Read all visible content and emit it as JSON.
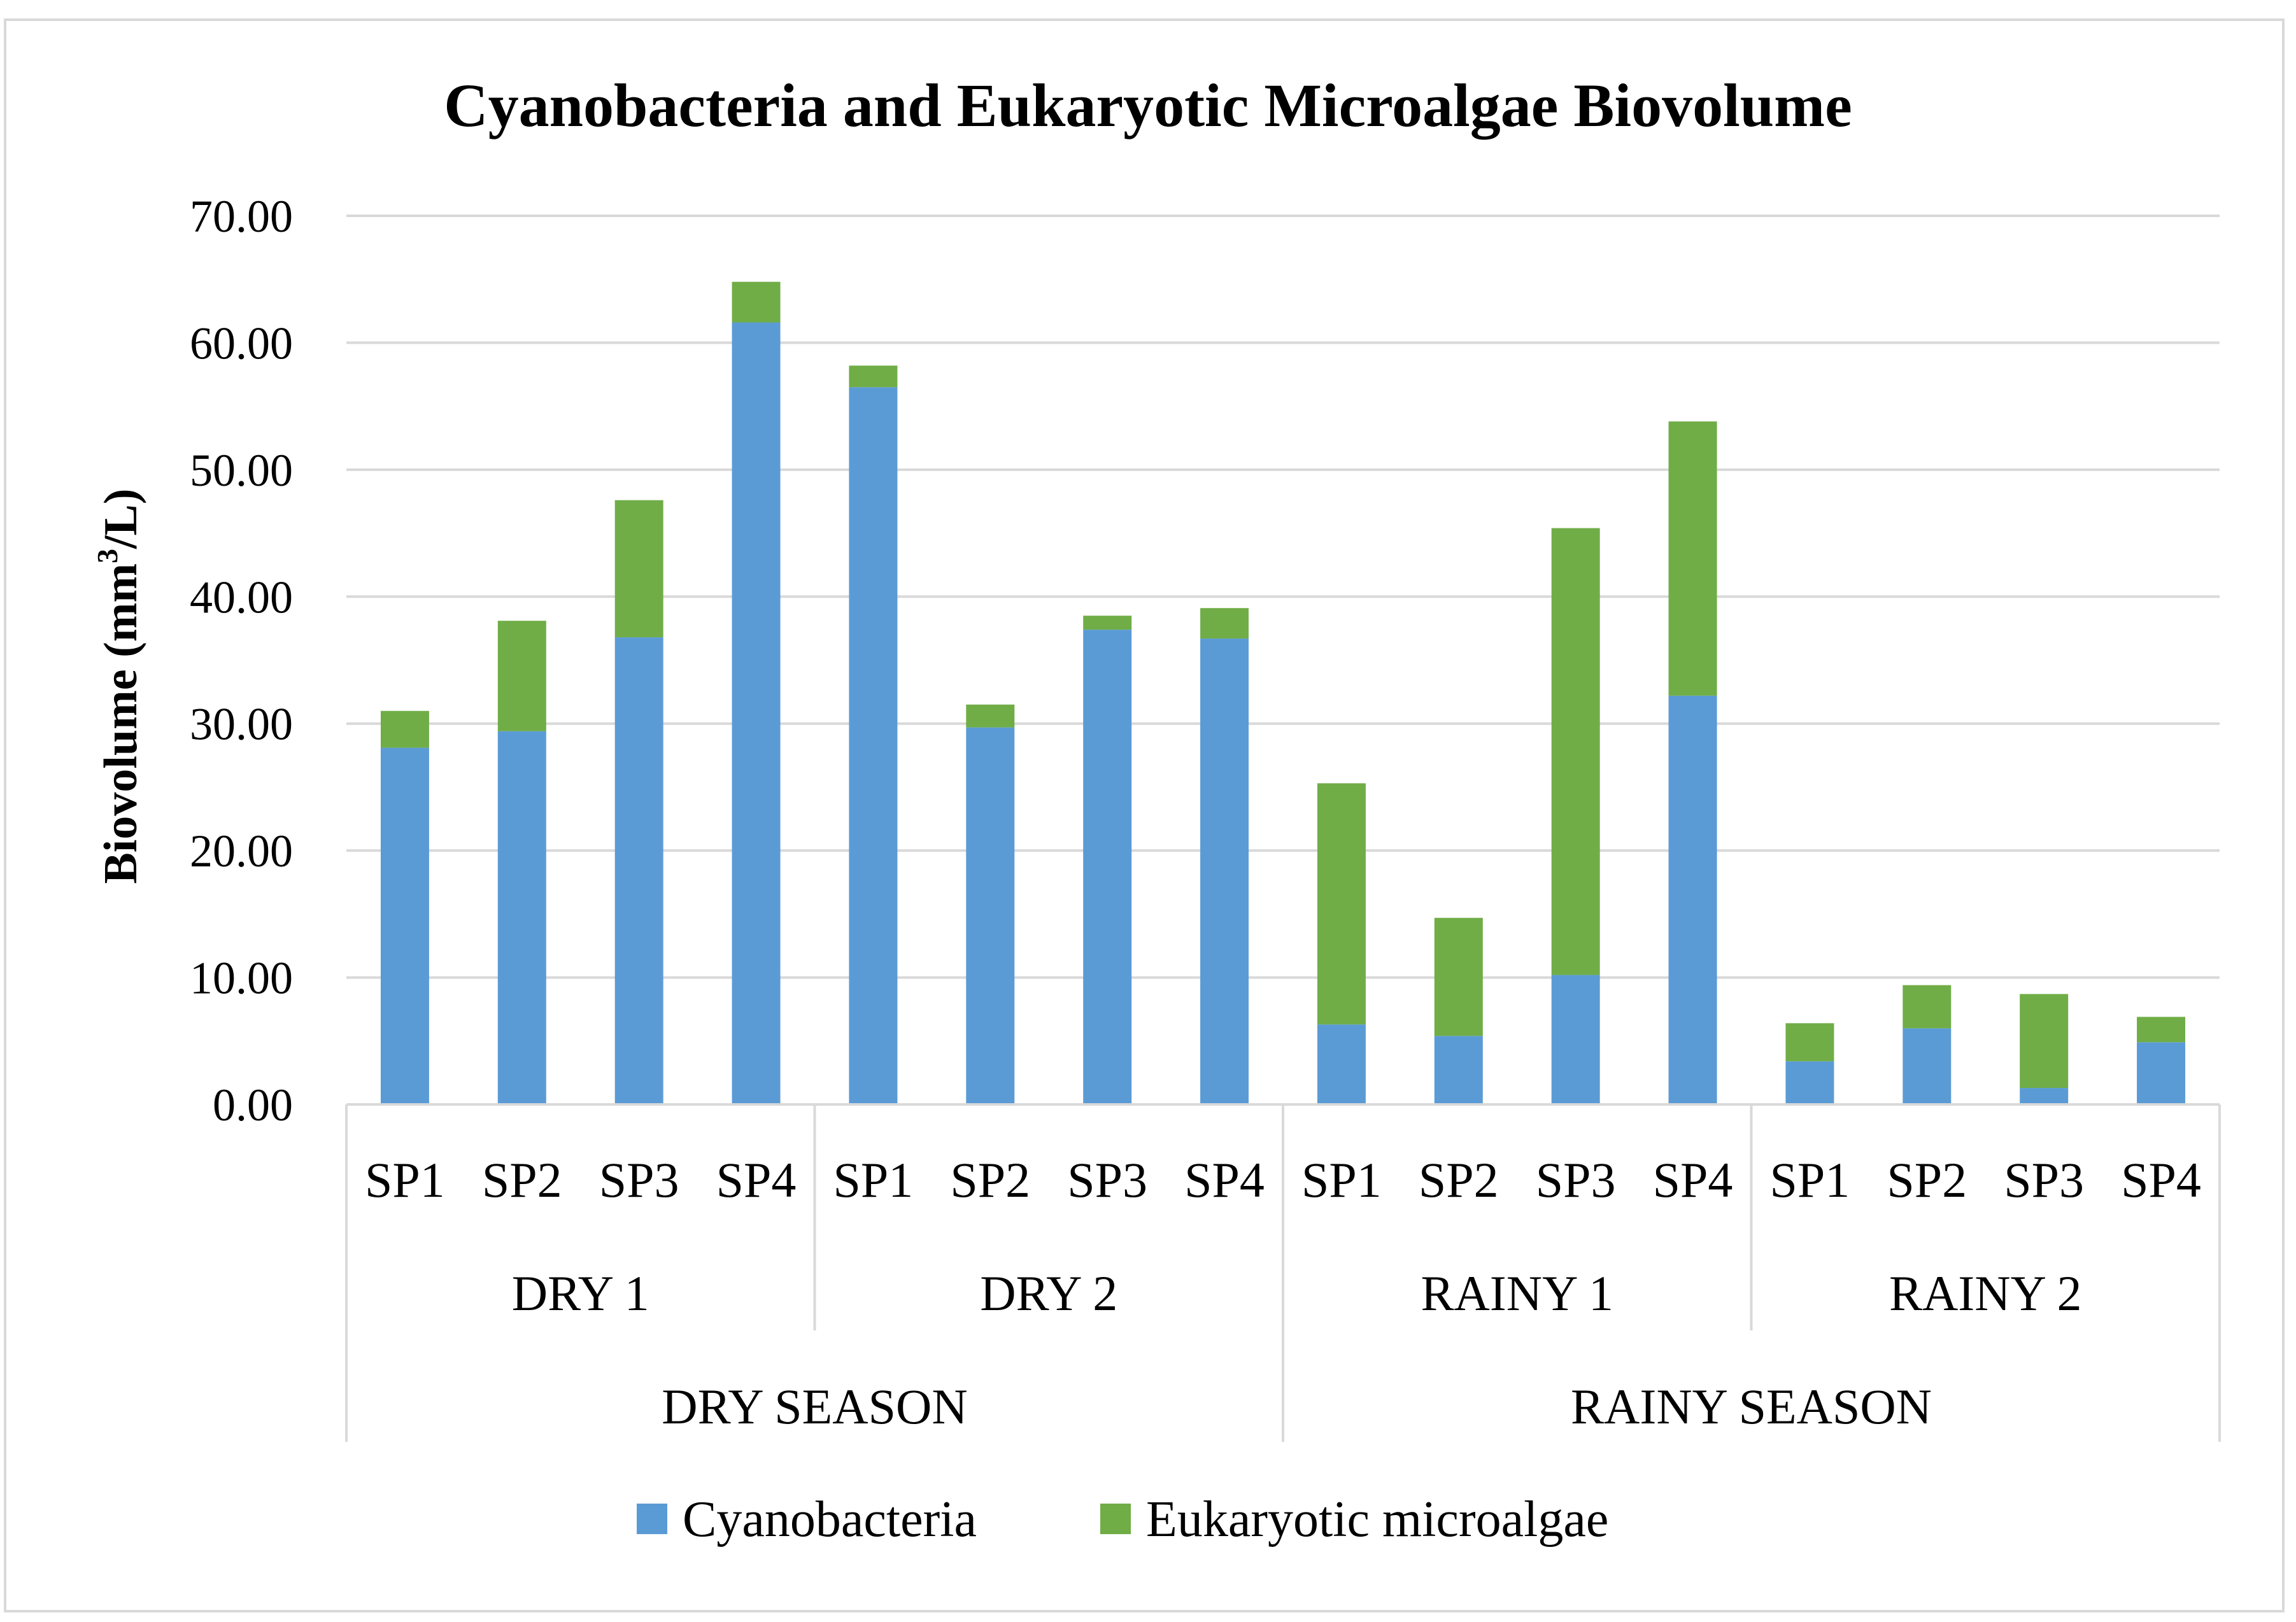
{
  "chart_data": {
    "type": "bar",
    "stacked": true,
    "title": "Cyanobacteria and Eukaryotic Microalgae Biovolume",
    "ylabel": "Biovolume (mm³/L)",
    "ylabel_parts": {
      "base": "Biovolume (mm",
      "superscript": "3",
      "end": "/L)"
    },
    "ylim": [
      0,
      70
    ],
    "yticks": [
      "0.00",
      "10.00",
      "20.00",
      "30.00",
      "40.00",
      "50.00",
      "60.00",
      "70.00"
    ],
    "ytick_values": [
      0,
      10,
      20,
      30,
      40,
      50,
      60,
      70
    ],
    "grid": true,
    "legend_position": "bottom",
    "categories": [
      "SP1",
      "SP2",
      "SP3",
      "SP4",
      "SP1",
      "SP2",
      "SP3",
      "SP4",
      "SP1",
      "SP2",
      "SP3",
      "SP4",
      "SP1",
      "SP2",
      "SP3",
      "SP4"
    ],
    "groups": [
      "DRY 1",
      "DRY 2",
      "RAINY 1",
      "RAINY 2"
    ],
    "seasons": [
      "DRY SEASON",
      "RAINY SEASON"
    ],
    "series": [
      {
        "name": "Cyanobacteria",
        "color": "#5b9bd5",
        "values": [
          28.1,
          29.4,
          36.8,
          61.6,
          56.5,
          29.7,
          37.4,
          36.7,
          6.3,
          5.4,
          10.2,
          32.2,
          3.4,
          6.0,
          1.3,
          4.9
        ]
      },
      {
        "name": "Eukaryotic microalgae",
        "color": "#70ad47",
        "values": [
          2.9,
          8.7,
          10.8,
          3.2,
          1.7,
          1.8,
          1.1,
          2.4,
          19.0,
          9.3,
          35.2,
          21.6,
          3.0,
          3.4,
          7.4,
          2.0
        ]
      }
    ]
  }
}
